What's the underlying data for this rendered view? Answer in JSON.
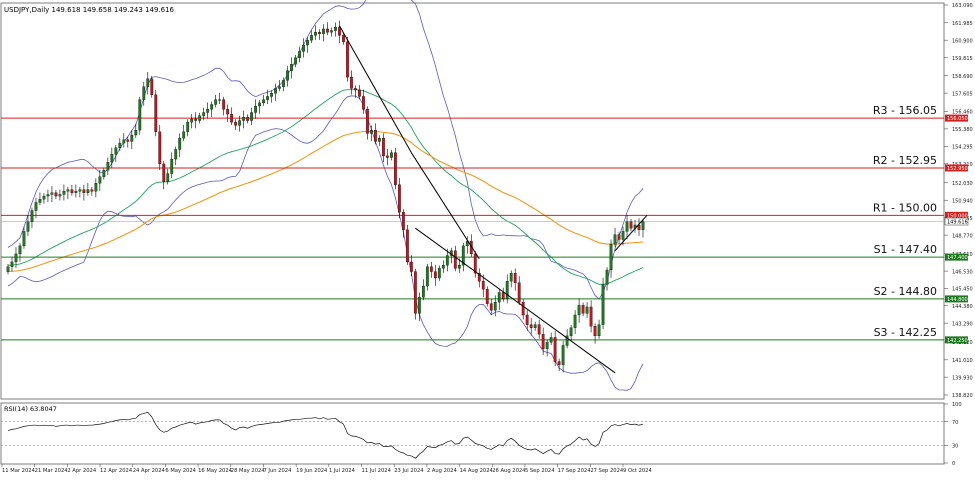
{
  "chart_data": [
    {
      "type": "candlestick",
      "title": "USDJPY,Daily  149.618 149.658 149.243 149.616",
      "last_price_label": "149.616",
      "ylim": [
        138.82,
        163.09
      ],
      "y_ticks": [
        "163.090",
        "161.985",
        "160.900",
        "159.815",
        "158.690",
        "157.605",
        "156.460",
        "155.380",
        "154.295",
        "153.210",
        "152.030",
        "150.940",
        "149.855",
        "148.770",
        "147.610",
        "146.530",
        "145.450",
        "144.380",
        "143.290",
        "142.120",
        "141.010",
        "139.930",
        "138.820"
      ],
      "x_ticks": [
        "11 Mar 2024",
        "21 Mar 2024",
        "2 Apr 2024",
        "12 Apr 2024",
        "24 Apr 2024",
        "6 May 2024",
        "16 May 2024",
        "28 May 2024",
        "7 Jun 2024",
        "19 Jun 2024",
        "1 Jul 2024",
        "11 Jul 2024",
        "23 Jul 2024",
        "2 Aug 2024",
        "14 Aug 2024",
        "26 Aug 2024",
        "5 Sep 2024",
        "17 Sep 2024",
        "27 Sep 2024",
        "9 Oct 2024"
      ],
      "levels": [
        {
          "name": "R3 - 156.05",
          "value": 156.05,
          "tag": "156.050",
          "color": "#d61f1f"
        },
        {
          "name": "R2 - 152.95",
          "value": 152.95,
          "tag": "152.950",
          "color": "#d61f1f"
        },
        {
          "name": "R1 - 150.00",
          "value": 150.0,
          "tag": "150.000",
          "color": "#d61f1f"
        },
        {
          "name": "S1 - 147.40",
          "value": 147.4,
          "tag": "147.400",
          "color": "#1d7a1d"
        },
        {
          "name": "S2 - 144.80",
          "value": 144.8,
          "tag": "144.800",
          "color": "#1d7a1d"
        },
        {
          "name": "S3 - 142.25",
          "value": 142.25,
          "tag": "142.250",
          "color": "#1d7a1d"
        }
      ],
      "closes": [
        146.8,
        147.1,
        147.6,
        148.1,
        149.0,
        149.6,
        150.3,
        150.8,
        151.0,
        151.2,
        151.3,
        151.4,
        151.2,
        151.3,
        151.5,
        151.6,
        151.4,
        151.5,
        151.6,
        151.4,
        151.6,
        151.5,
        152.0,
        152.4,
        152.8,
        153.3,
        153.8,
        154.2,
        154.5,
        154.7,
        154.6,
        155.0,
        155.3,
        157.2,
        158.0,
        158.5,
        157.5,
        155.2,
        153.2,
        152.1,
        152.6,
        153.5,
        154.1,
        154.8,
        155.2,
        155.8,
        156.0,
        155.9,
        156.2,
        156.4,
        156.6,
        156.9,
        157.2,
        157.2,
        156.6,
        156.3,
        155.8,
        155.6,
        155.9,
        156.1,
        155.9,
        156.4,
        156.8,
        157.0,
        157.2,
        157.4,
        157.6,
        157.9,
        158.0,
        158.4,
        159.0,
        159.4,
        159.8,
        160.2,
        160.6,
        160.9,
        161.2,
        161.4,
        161.3,
        161.6,
        161.4,
        161.5,
        161.7,
        161.2,
        160.8,
        158.6,
        157.9,
        157.8,
        157.4,
        156.6,
        155.1,
        155.3,
        154.6,
        154.8,
        153.7,
        153.6,
        153.9,
        151.9,
        150.2,
        149.1,
        147.1,
        146.5,
        143.9,
        144.9,
        145.6,
        146.8,
        146.5,
        146.1,
        146.7,
        146.9,
        147.5,
        147.8,
        146.7,
        146.9,
        148.1,
        148.4,
        147.6,
        146.4,
        145.9,
        145.4,
        144.5,
        144.1,
        144.6,
        145.2,
        144.8,
        145.9,
        146.4,
        145.8,
        144.6,
        143.8,
        143.2,
        143.0,
        143.2,
        142.6,
        141.7,
        142.1,
        142.4,
        140.9,
        140.7,
        141.9,
        142.5,
        143.0,
        143.8,
        144.4,
        143.9,
        144.3,
        143.1,
        142.5,
        143.2,
        145.7,
        146.6,
        148.2,
        148.8,
        148.5,
        149.0,
        149.6,
        149.2,
        149.4,
        149.1,
        149.6
      ]
    },
    {
      "type": "line",
      "title": "RSI(14) 63.8047",
      "ylim": [
        0,
        100
      ],
      "y_ticks": [
        "100",
        "70",
        "30",
        "0"
      ],
      "reference_lines": [
        70,
        30
      ],
      "values": [
        55,
        57,
        58,
        60,
        62,
        63,
        64,
        64,
        63,
        64,
        63,
        64,
        62,
        63,
        64,
        64,
        63,
        64,
        64,
        63,
        64,
        64,
        65,
        66,
        67,
        69,
        70,
        72,
        73,
        74,
        73,
        75,
        76,
        82,
        84,
        86,
        78,
        65,
        56,
        52,
        54,
        59,
        61,
        64,
        66,
        68,
        69,
        66,
        68,
        69,
        70,
        72,
        73,
        73,
        67,
        64,
        59,
        56,
        60,
        61,
        59,
        62,
        64,
        65,
        66,
        67,
        68,
        69,
        69,
        71,
        72,
        73,
        74,
        74,
        75,
        76,
        76,
        77,
        75,
        77,
        74,
        75,
        76,
        70,
        66,
        50,
        46,
        45,
        43,
        40,
        34,
        35,
        32,
        33,
        28,
        28,
        29,
        23,
        19,
        17,
        13,
        12,
        8,
        15,
        20,
        28,
        27,
        26,
        30,
        32,
        36,
        38,
        32,
        33,
        42,
        44,
        39,
        33,
        31,
        29,
        25,
        23,
        27,
        31,
        29,
        38,
        42,
        37,
        30,
        26,
        23,
        22,
        24,
        20,
        16,
        20,
        23,
        16,
        15,
        24,
        29,
        32,
        38,
        44,
        39,
        41,
        32,
        28,
        33,
        52,
        56,
        63,
        65,
        63,
        65,
        67,
        65,
        66,
        64,
        66
      ]
    }
  ]
}
